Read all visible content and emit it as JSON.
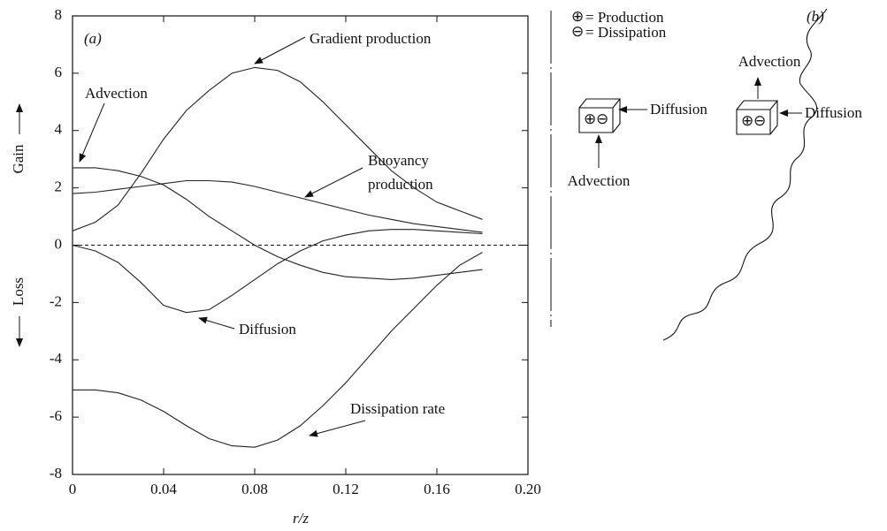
{
  "chart_data": {
    "type": "line",
    "panel_label": "(a)",
    "x_label": "r/z",
    "y_label_gain": "Gain",
    "y_label_loss": "Loss",
    "x": [
      0,
      0.01,
      0.02,
      0.03,
      0.04,
      0.05,
      0.06,
      0.07,
      0.08,
      0.09,
      0.1,
      0.11,
      0.12,
      0.13,
      0.14,
      0.15,
      0.16,
      0.17,
      0.18
    ],
    "series": [
      {
        "name": "Gradient production",
        "color": "#222",
        "values": [
          0.5,
          0.8,
          1.4,
          2.5,
          3.7,
          4.7,
          5.4,
          6.0,
          6.2,
          6.1,
          5.7,
          5.0,
          4.2,
          3.4,
          2.6,
          2.0,
          1.5,
          1.2,
          0.9
        ]
      },
      {
        "name": "Advection",
        "color": "#222",
        "values": [
          2.7,
          2.7,
          2.6,
          2.4,
          2.1,
          1.6,
          1.0,
          0.5,
          0.0,
          -0.4,
          -0.7,
          -0.95,
          -1.1,
          -1.15,
          -1.2,
          -1.15,
          -1.05,
          -0.95,
          -0.85
        ]
      },
      {
        "name": "Buoyancy production",
        "color": "#222",
        "values": [
          1.8,
          1.85,
          1.95,
          2.05,
          2.15,
          2.25,
          2.25,
          2.2,
          2.05,
          1.85,
          1.65,
          1.45,
          1.25,
          1.05,
          0.9,
          0.75,
          0.65,
          0.55,
          0.45
        ]
      },
      {
        "name": "Diffusion",
        "color": "#222",
        "values": [
          0,
          -0.2,
          -0.6,
          -1.3,
          -2.1,
          -2.35,
          -2.25,
          -1.75,
          -1.2,
          -0.65,
          -0.2,
          0.15,
          0.35,
          0.5,
          0.55,
          0.55,
          0.5,
          0.45,
          0.4
        ]
      },
      {
        "name": "Dissipation rate",
        "color": "#222",
        "values": [
          -5.05,
          -5.05,
          -5.15,
          -5.4,
          -5.8,
          -6.3,
          -6.75,
          -7.0,
          -7.05,
          -6.8,
          -6.3,
          -5.6,
          -4.8,
          -3.9,
          -3.0,
          -2.2,
          -1.4,
          -0.7,
          -0.25
        ]
      }
    ],
    "xlim": [
      0,
      0.2
    ],
    "xticks": [
      0,
      0.04,
      0.08,
      0.12,
      0.16,
      {
        "value": 0.2,
        "label": "0.20"
      }
    ],
    "ylim": [
      -8,
      8
    ],
    "yticks": [
      -8,
      -6,
      -4,
      -2,
      0,
      2,
      4,
      6,
      8
    ]
  },
  "diagram": {
    "panel_label": "(b)",
    "legend": [
      {
        "symbol": "⊕",
        "text": "= Production"
      },
      {
        "symbol": "⊖",
        "text": "= Dissipation"
      }
    ],
    "left_cube": {
      "side": "Diffusion",
      "below": "Advection"
    },
    "right_cube": {
      "above": "Advection",
      "side": "Diffusion"
    }
  }
}
